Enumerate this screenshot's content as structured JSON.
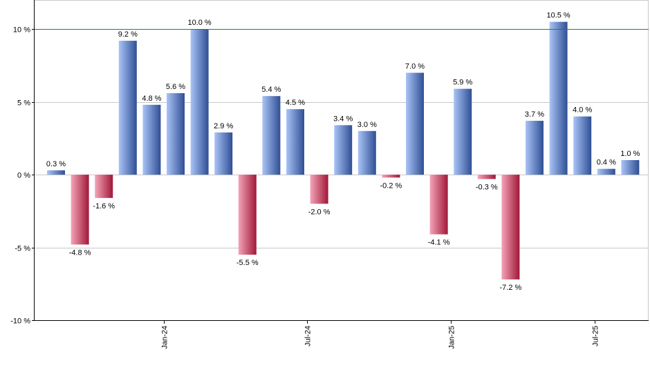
{
  "chart_data": {
    "type": "bar",
    "title": "",
    "xlabel": "",
    "ylabel": "",
    "ylim": [
      -10,
      12
    ],
    "y_ticks": [
      10,
      5,
      0,
      -5,
      -10
    ],
    "y_tick_labels": [
      "10 %",
      "5 %",
      "0 %",
      "-5 %",
      "-10 %"
    ],
    "reference_line": 10,
    "x_tick_labels": [
      {
        "label": "Jan-24",
        "index": 5
      },
      {
        "label": "Jul-24",
        "index": 11
      },
      {
        "label": "Jan-25",
        "index": 17
      },
      {
        "label": "Jul-25",
        "index": 23
      }
    ],
    "values": [
      0.3,
      -4.8,
      -1.6,
      9.2,
      4.8,
      5.6,
      10.0,
      2.9,
      -5.5,
      5.4,
      4.5,
      -2.0,
      3.4,
      3.0,
      -0.2,
      7.0,
      -4.1,
      5.9,
      -0.3,
      -7.2,
      3.7,
      10.5,
      4.0,
      0.4,
      1.0
    ],
    "labels": [
      "0.3 %",
      "-4.8 %",
      "-1.6 %",
      "9.2 %",
      "4.8 %",
      "5.6 %",
      "10.0 %",
      "2.9 %",
      "-5.5 %",
      "5.4 %",
      "4.5 %",
      "-2.0 %",
      "3.4 %",
      "3.0 %",
      "-0.2 %",
      "7.0 %",
      "-4.1 %",
      "5.9 %",
      "-0.3 %",
      "-7.2 %",
      "3.7 %",
      "10.5 %",
      "4.0 %",
      "0.4 %",
      "1.0 %"
    ],
    "colors": {
      "positive_light": "#aac4f7",
      "positive_dark": "#2f4f94",
      "negative_light": "#f4a4b8",
      "negative_dark": "#a01838",
      "grid": "#c8c8c8",
      "reference_line": "#2e7d32",
      "axis": "#000000"
    }
  }
}
